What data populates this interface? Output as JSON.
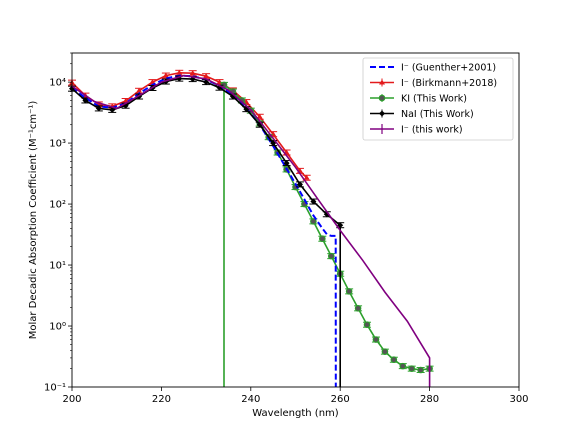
{
  "chart_data": {
    "type": "line",
    "xlabel": "Wavelength (nm)",
    "ylabel": "Molar Decadic Absorption Coefficient (M⁻¹cm⁻¹)",
    "xlim": [
      200,
      300
    ],
    "ylim": [
      0.1,
      30000
    ],
    "yscale": "log",
    "grid": false,
    "legend_position": "top-right",
    "x_ticks": [
      "200",
      "220",
      "240",
      "260",
      "280",
      "300"
    ],
    "x_tick_values": [
      200,
      220,
      240,
      260,
      280,
      300
    ],
    "y_ticks": [
      "10⁻¹",
      "10⁰",
      "10¹",
      "10²",
      "10³",
      "10⁴"
    ],
    "y_tick_values": [
      0.1,
      1,
      10,
      100,
      1000,
      10000
    ],
    "series": [
      {
        "name": "I⁻ (Guenther+2001)",
        "color": "#0000ff",
        "style": "dashed",
        "marker": "none",
        "x": [
          200,
          203,
          206,
          209,
          212,
          215,
          218,
          221,
          224,
          227,
          230,
          233,
          236,
          239,
          242,
          245,
          248,
          251,
          254,
          256,
          257,
          258,
          259,
          259.01
        ],
        "y": [
          8000,
          5500,
          4000,
          3800,
          4500,
          6500,
          9000,
          11500,
          12800,
          12500,
          11000,
          8700,
          6000,
          3700,
          2000,
          900,
          380,
          160,
          65,
          40,
          32,
          30,
          30,
          0.1
        ]
      },
      {
        "name": "I⁻ (Birkmann+2018)",
        "color": "#e31a1c",
        "style": "solid",
        "marker": "triangle",
        "x": [
          200,
          203,
          206,
          209,
          212,
          215,
          218,
          221,
          224,
          227,
          230,
          233,
          236,
          239,
          242,
          245,
          248,
          251,
          252.5
        ],
        "y": [
          9800,
          6000,
          4300,
          4000,
          4900,
          7200,
          10000,
          12800,
          14200,
          14000,
          12500,
          10000,
          7300,
          4700,
          2700,
          1400,
          700,
          350,
          270
        ]
      },
      {
        "name": "KI (This Work)",
        "color": "#2ca02c",
        "style": "solid",
        "marker": "circle",
        "x": [
          234,
          234.01,
          236,
          238,
          240,
          242,
          244,
          246,
          248,
          250,
          252,
          254,
          256,
          258,
          260,
          262,
          264,
          266,
          268,
          270,
          272,
          274,
          276,
          278,
          280
        ],
        "y": [
          0.1,
          9000,
          7000,
          5000,
          3400,
          2100,
          1250,
          700,
          370,
          190,
          100,
          52,
          27,
          14,
          7.2,
          3.7,
          1.95,
          1.05,
          0.6,
          0.38,
          0.28,
          0.22,
          0.2,
          0.19,
          0.2
        ]
      },
      {
        "name": "NaI (This Work)",
        "color": "#000000",
        "style": "solid",
        "marker": "diamond",
        "x": [
          200,
          203,
          206,
          209,
          212,
          215,
          218,
          221,
          224,
          227,
          230,
          233,
          236,
          239,
          242,
          245,
          248,
          251,
          254,
          257,
          260,
          260.01
        ],
        "y": [
          7800,
          5000,
          3700,
          3500,
          4100,
          5800,
          8000,
          10200,
          11400,
          11200,
          10000,
          8100,
          5800,
          3600,
          2000,
          1000,
          470,
          210,
          110,
          68,
          45,
          0.1
        ]
      },
      {
        "name": "I⁻ (this work)",
        "color": "#800080",
        "style": "solid",
        "marker": "none",
        "x": [
          200,
          205,
          210,
          215,
          220,
          225,
          230,
          235,
          240,
          245,
          250,
          255,
          260,
          265,
          270,
          275,
          280,
          280.01
        ],
        "y": [
          8600,
          4800,
          3700,
          6000,
          10000,
          12800,
          11300,
          7400,
          3500,
          1200,
          400,
          120,
          37,
          12,
          3.6,
          1.2,
          0.3,
          0.1
        ]
      }
    ]
  }
}
